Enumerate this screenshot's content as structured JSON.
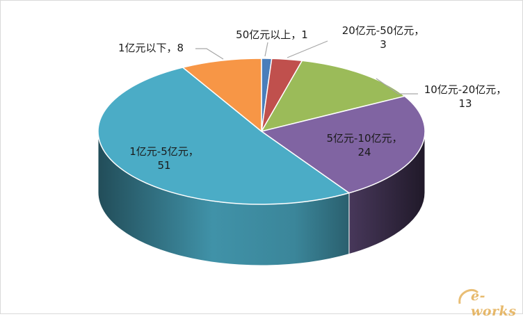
{
  "chart_data": {
    "type": "pie",
    "title": "",
    "legend": "none",
    "categories": [
      "50亿元以上",
      "20亿元-50亿元",
      "10亿元-20亿元",
      "5亿元-10亿元",
      "1亿元-5亿元",
      "1亿元以下"
    ],
    "values": [
      1,
      3,
      13,
      24,
      51,
      8
    ],
    "colors": [
      "#4a7ebb",
      "#c0504d",
      "#9bbb59",
      "#8064a2",
      "#4bacc6",
      "#f79646"
    ],
    "data_labels": [
      [
        "50亿元以上，1"
      ],
      [
        "20亿元-50亿元，",
        "3"
      ],
      [
        "10亿元-20亿元，",
        "13"
      ],
      [
        "5亿元-10亿元，",
        "24"
      ],
      [
        "1亿元-5亿元，",
        "51"
      ],
      [
        "1亿元以下，8"
      ]
    ],
    "style": "3d"
  },
  "watermark": {
    "text": "e-works"
  }
}
